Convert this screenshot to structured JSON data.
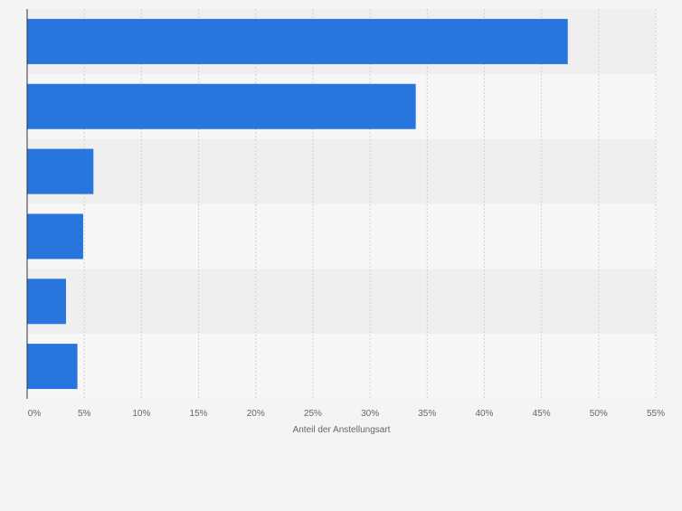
{
  "chart_data": {
    "type": "bar",
    "orientation": "horizontal",
    "categories": [
      "",
      "",
      "",
      "",
      "",
      ""
    ],
    "values": [
      47.3,
      34.0,
      5.8,
      4.9,
      3.4,
      4.4
    ],
    "xlabel": "Anteil der Anstellungsart",
    "ylabel": "",
    "xlim": [
      0,
      55
    ],
    "xticks": [
      "0%",
      "5%",
      "10%",
      "15%",
      "20%",
      "25%",
      "30%",
      "35%",
      "40%",
      "45%",
      "50%",
      "55%"
    ],
    "grid": true,
    "legend": "none",
    "colors": {
      "bar": "#2876dd",
      "band_dark": "#efefef",
      "band_light": "#f7f7f7",
      "background": "#f4f4f4",
      "gridline": "#d0d0d0",
      "axis": "#333333",
      "tick_text": "#666666"
    }
  }
}
